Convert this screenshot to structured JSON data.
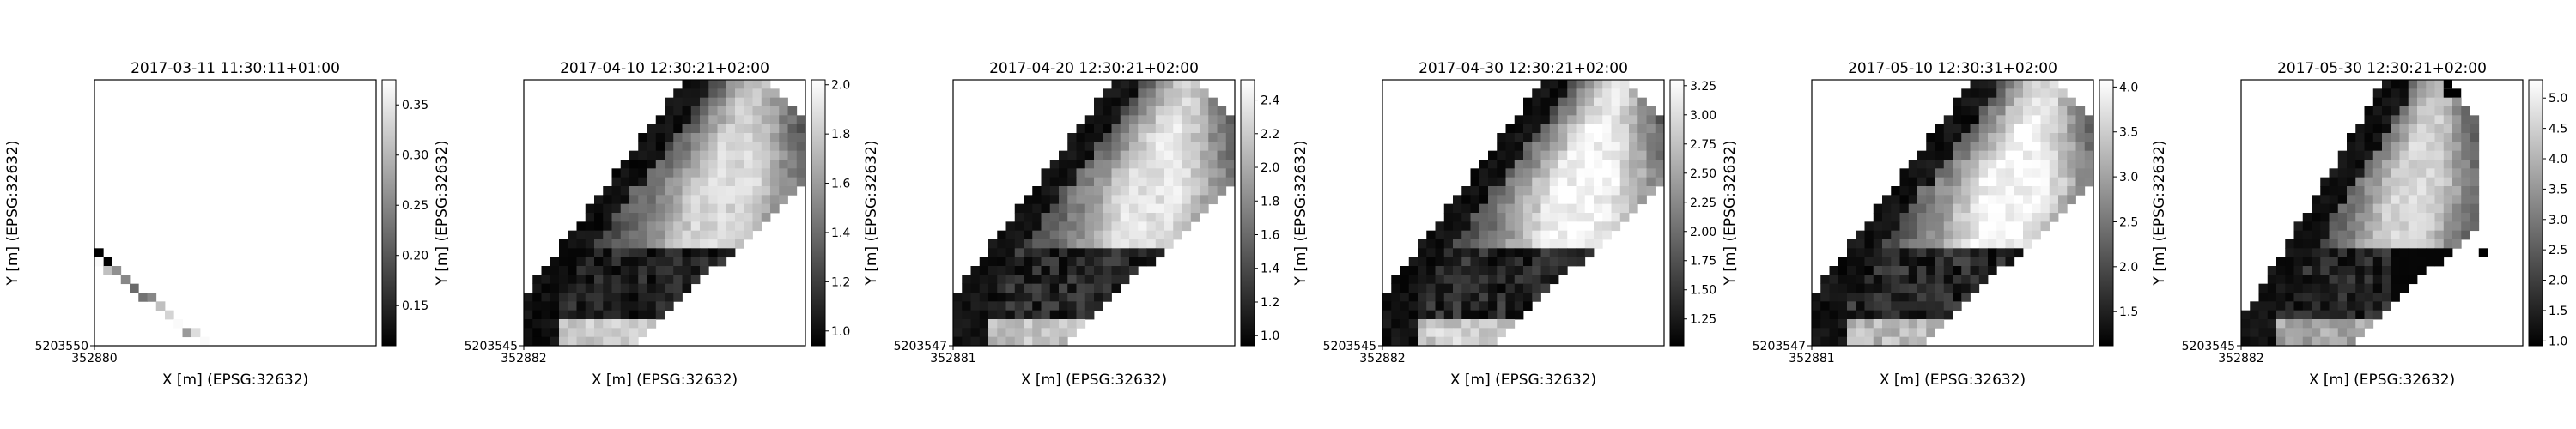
{
  "chart_data": [
    {
      "type": "heatmap",
      "title": "2017-03-11 11:30:11+01:00",
      "xlabel": "X [m] (EPSG:32632)",
      "ylabel": "Y [m] (EPSG:32632)",
      "x_tick_labels": [
        "352880"
      ],
      "y_tick_labels": [
        "5203550"
      ],
      "colormap": "gray",
      "colorbar": {
        "range": [
          0.11,
          0.375
        ],
        "ticks": [
          "0.15",
          "0.20",
          "0.25",
          "0.30",
          "0.35"
        ]
      },
      "grid": {
        "cols": 32,
        "rows": 30
      },
      "pixels": [
        [
          0,
          19,
          0.11
        ],
        [
          1,
          20,
          0.11
        ],
        [
          0,
          20,
          0.37
        ],
        [
          1,
          21,
          0.31
        ],
        [
          2,
          21,
          0.26
        ],
        [
          3,
          22,
          0.25
        ],
        [
          4,
          23,
          0.22
        ],
        [
          5,
          24,
          0.23
        ],
        [
          6,
          24,
          0.25
        ],
        [
          7,
          25,
          0.31
        ],
        [
          8,
          26,
          0.33
        ],
        [
          9,
          27,
          0.37
        ],
        [
          10,
          28,
          0.27
        ],
        [
          11,
          28,
          0.34
        ],
        [
          12,
          29,
          0.37
        ]
      ]
    },
    {
      "type": "heatmap",
      "title": "2017-04-10 12:30:21+02:00",
      "xlabel": "X [m] (EPSG:32632)",
      "ylabel": "Y [m] (EPSG:32632)",
      "x_tick_labels": [
        "352882"
      ],
      "y_tick_labels": [
        "5203545"
      ],
      "colormap": "gray",
      "colorbar": {
        "range": [
          0.94,
          2.02
        ],
        "ticks": [
          "1.0",
          "1.2",
          "1.4",
          "1.6",
          "1.8",
          "2.0"
        ]
      },
      "grid": {
        "cols": 32,
        "rows": 30
      },
      "field": {
        "ridge_value": 1.85,
        "low_value": 0.95,
        "bright_band": 1.9,
        "bottom_bright": true,
        "gap_row": 0
      },
      "footprint": {
        "top_start_col": 17.5,
        "slope": 0.75,
        "band_width": 22,
        "right_col": 31
      }
    },
    {
      "type": "heatmap",
      "title": "2017-04-20 12:30:21+02:00",
      "xlabel": "X [m] (EPSG:32632)",
      "ylabel": "Y [m] (EPSG:32632)",
      "x_tick_labels": [
        "352881"
      ],
      "y_tick_labels": [
        "5203547"
      ],
      "colormap": "gray",
      "colorbar": {
        "range": [
          0.94,
          2.52
        ],
        "ticks": [
          "1.0",
          "1.2",
          "1.4",
          "1.6",
          "1.8",
          "2.0",
          "2.2",
          "2.4"
        ]
      },
      "grid": {
        "cols": 32,
        "rows": 30
      },
      "field": {
        "ridge_value": 2.35,
        "low_value": 0.97,
        "bright_band": 2.3,
        "bottom_bright": true,
        "gap_row": 0
      },
      "footprint": {
        "top_start_col": 17.5,
        "slope": 0.75,
        "band_width": 22,
        "right_col": 31
      }
    },
    {
      "type": "heatmap",
      "title": "2017-04-30 12:30:21+02:00",
      "xlabel": "X [m] (EPSG:32632)",
      "ylabel": "Y [m] (EPSG:32632)",
      "x_tick_labels": [
        "352882"
      ],
      "y_tick_labels": [
        "5203545"
      ],
      "colormap": "gray",
      "colorbar": {
        "range": [
          1.02,
          3.3
        ],
        "ticks": [
          "1.25",
          "1.50",
          "1.75",
          "2.00",
          "2.25",
          "2.50",
          "2.75",
          "3.00",
          "3.25"
        ]
      },
      "grid": {
        "cols": 32,
        "rows": 30
      },
      "field": {
        "ridge_value": 3.2,
        "low_value": 1.05,
        "bright_band": 3.1,
        "bottom_bright": true,
        "gap_row": 0
      },
      "footprint": {
        "top_start_col": 17.5,
        "slope": 0.75,
        "band_width": 22,
        "right_col": 31
      }
    },
    {
      "type": "heatmap",
      "title": "2017-05-10 12:30:31+02:00",
      "xlabel": "X [m] (EPSG:32632)",
      "ylabel": "Y [m] (EPSG:32632)",
      "x_tick_labels": [
        "352881"
      ],
      "y_tick_labels": [
        "5203547"
      ],
      "colormap": "gray",
      "colorbar": {
        "range": [
          1.12,
          4.08
        ],
        "ticks": [
          "1.5",
          "2.0",
          "2.5",
          "3.0",
          "3.5",
          "4.0"
        ]
      },
      "grid": {
        "cols": 32,
        "rows": 30
      },
      "field": {
        "ridge_value": 4.0,
        "low_value": 1.15,
        "bright_band": 3.6,
        "bottom_bright": true,
        "gap_row": 0
      },
      "footprint": {
        "top_start_col": 17.5,
        "slope": 0.75,
        "band_width": 22,
        "right_col": 31
      }
    },
    {
      "type": "heatmap",
      "title": "2017-05-30 12:30:21+02:00",
      "xlabel": "X [m] (EPSG:32632)",
      "ylabel": "Y [m] (EPSG:32632)",
      "x_tick_labels": [
        "352882"
      ],
      "y_tick_labels": [
        "5203545"
      ],
      "colormap": "gray",
      "colorbar": {
        "range": [
          0.92,
          5.3
        ],
        "ticks": [
          "1.0",
          "1.5",
          "2.0",
          "2.5",
          "3.0",
          "3.5",
          "4.0",
          "4.5",
          "5.0"
        ]
      },
      "grid": {
        "cols": 32,
        "rows": 30
      },
      "field": {
        "ridge_value": 4.6,
        "low_value": 1.0,
        "bright_band": 4.2,
        "bottom_bright": true,
        "gap_row": 0,
        "cutout": true
      },
      "footprint": {
        "top_start_col": 15.5,
        "slope": 0.6,
        "band_width": 20,
        "right_col": 26
      }
    }
  ]
}
